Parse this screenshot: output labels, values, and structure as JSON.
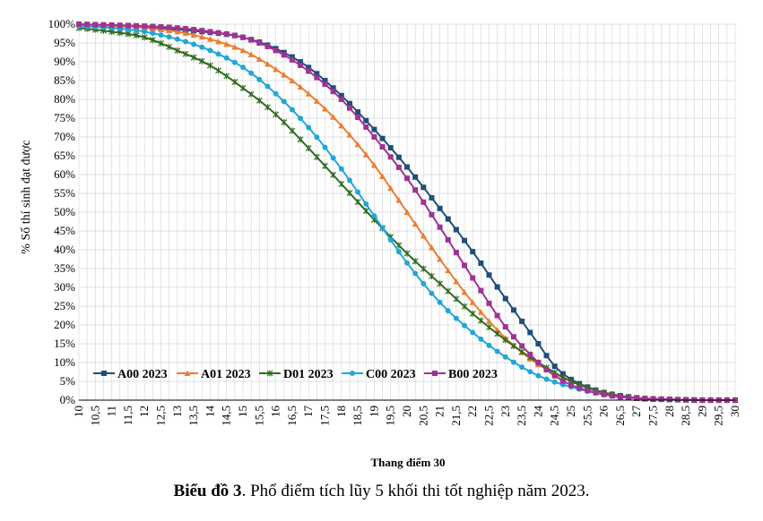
{
  "caption": {
    "bold": "Biểu đồ 3",
    "rest": ". Phổ điểm tích lũy 5 khối thi tốt nghiệp năm 2023."
  },
  "chart_data": {
    "type": "line",
    "xlabel": "Thang điểm 30",
    "ylabel": "% Số thí sinh đạt được",
    "x_ticks": [
      "10",
      "10,5",
      "11",
      "11,5",
      "12",
      "12,5",
      "13",
      "13,5",
      "14",
      "14,5",
      "15",
      "15,5",
      "16",
      "16,5",
      "17",
      "17,5",
      "18",
      "18,5",
      "19",
      "19,5",
      "20",
      "20,5",
      "21",
      "21,5",
      "22",
      "22,5",
      "23",
      "23,5",
      "24",
      "24,5",
      "25",
      "25,5",
      "26",
      "26,5",
      "27",
      "27,5",
      "28",
      "28,5",
      "29",
      "29,5",
      "30"
    ],
    "y_ticks": [
      "0%",
      "5%",
      "10%",
      "15%",
      "20%",
      "25%",
      "30%",
      "35%",
      "40%",
      "45%",
      "50%",
      "55%",
      "60%",
      "65%",
      "70%",
      "75%",
      "80%",
      "85%",
      "90%",
      "95%",
      "100%"
    ],
    "xlim": [
      10,
      30
    ],
    "ylim": [
      0,
      100
    ],
    "x_step": 0.25,
    "grid": true,
    "legend_position": "bottom-left",
    "series": [
      {
        "name": "A00 2023",
        "color": "#1f4e79",
        "marker": "square",
        "anchors": [
          [
            10,
            100
          ],
          [
            12,
            99.2
          ],
          [
            14,
            97.8
          ],
          [
            15,
            96.5
          ],
          [
            16,
            93.5
          ],
          [
            17,
            88.5
          ],
          [
            18,
            81
          ],
          [
            19,
            72
          ],
          [
            20,
            62
          ],
          [
            21,
            51
          ],
          [
            22,
            39.5
          ],
          [
            23,
            27
          ],
          [
            24,
            15
          ],
          [
            24.5,
            9
          ],
          [
            25,
            5.5
          ],
          [
            25.5,
            3.5
          ],
          [
            26,
            2
          ],
          [
            27,
            0.6
          ],
          [
            28,
            0.2
          ],
          [
            29,
            0
          ],
          [
            30,
            0
          ]
        ]
      },
      {
        "name": "A01 2023",
        "color": "#ed7d31",
        "marker": "triangle",
        "anchors": [
          [
            10,
            100
          ],
          [
            12,
            99
          ],
          [
            13,
            98
          ],
          [
            14,
            96
          ],
          [
            15,
            93
          ],
          [
            16,
            88
          ],
          [
            17,
            81.5
          ],
          [
            18,
            73
          ],
          [
            19,
            62.5
          ],
          [
            20,
            50
          ],
          [
            21,
            37.5
          ],
          [
            22,
            26
          ],
          [
            23,
            16.5
          ],
          [
            24,
            9.5
          ],
          [
            25,
            5
          ],
          [
            26,
            2
          ],
          [
            27,
            0.5
          ],
          [
            28,
            0.2
          ],
          [
            29,
            0
          ],
          [
            30,
            0
          ]
        ]
      },
      {
        "name": "D01 2023",
        "color": "#2e6b1e",
        "marker": "star",
        "anchors": [
          [
            10,
            99
          ],
          [
            11,
            98
          ],
          [
            12,
            96.5
          ],
          [
            13,
            93
          ],
          [
            14,
            89
          ],
          [
            15,
            83
          ],
          [
            16,
            76
          ],
          [
            17,
            67
          ],
          [
            18,
            57.5
          ],
          [
            19,
            48
          ],
          [
            20,
            39
          ],
          [
            21,
            31
          ],
          [
            22,
            23
          ],
          [
            23,
            16
          ],
          [
            24,
            10
          ],
          [
            25,
            5
          ],
          [
            26,
            2
          ],
          [
            27,
            0.6
          ],
          [
            28,
            0.2
          ],
          [
            29,
            0
          ],
          [
            30,
            0
          ]
        ]
      },
      {
        "name": "C00 2023",
        "color": "#21a6d8",
        "marker": "circle",
        "anchors": [
          [
            10,
            99.5
          ],
          [
            11,
            99
          ],
          [
            12,
            98
          ],
          [
            13,
            96
          ],
          [
            14,
            93
          ],
          [
            15,
            88.5
          ],
          [
            16,
            81.5
          ],
          [
            17,
            72.5
          ],
          [
            18,
            61.5
          ],
          [
            19,
            49
          ],
          [
            20,
            36.5
          ],
          [
            21,
            26
          ],
          [
            22,
            18
          ],
          [
            23,
            11.5
          ],
          [
            24,
            6.5
          ],
          [
            25,
            3.5
          ],
          [
            26,
            1.5
          ],
          [
            27,
            0.5
          ],
          [
            28,
            0.1
          ],
          [
            29,
            0
          ],
          [
            30,
            0
          ]
        ]
      },
      {
        "name": "B00 2023",
        "color": "#9e3392",
        "marker": "square",
        "anchors": [
          [
            10,
            100
          ],
          [
            12,
            99.5
          ],
          [
            13,
            99
          ],
          [
            14,
            98
          ],
          [
            15,
            96.5
          ],
          [
            16,
            93
          ],
          [
            17,
            87.5
          ],
          [
            18,
            80
          ],
          [
            19,
            70
          ],
          [
            20,
            59
          ],
          [
            21,
            46
          ],
          [
            22,
            32.5
          ],
          [
            23,
            19.5
          ],
          [
            24,
            10
          ],
          [
            24.5,
            6.5
          ],
          [
            25,
            4
          ],
          [
            26,
            1.5
          ],
          [
            27,
            0.5
          ],
          [
            28,
            0.2
          ],
          [
            29,
            0
          ],
          [
            30,
            0
          ]
        ]
      }
    ]
  }
}
